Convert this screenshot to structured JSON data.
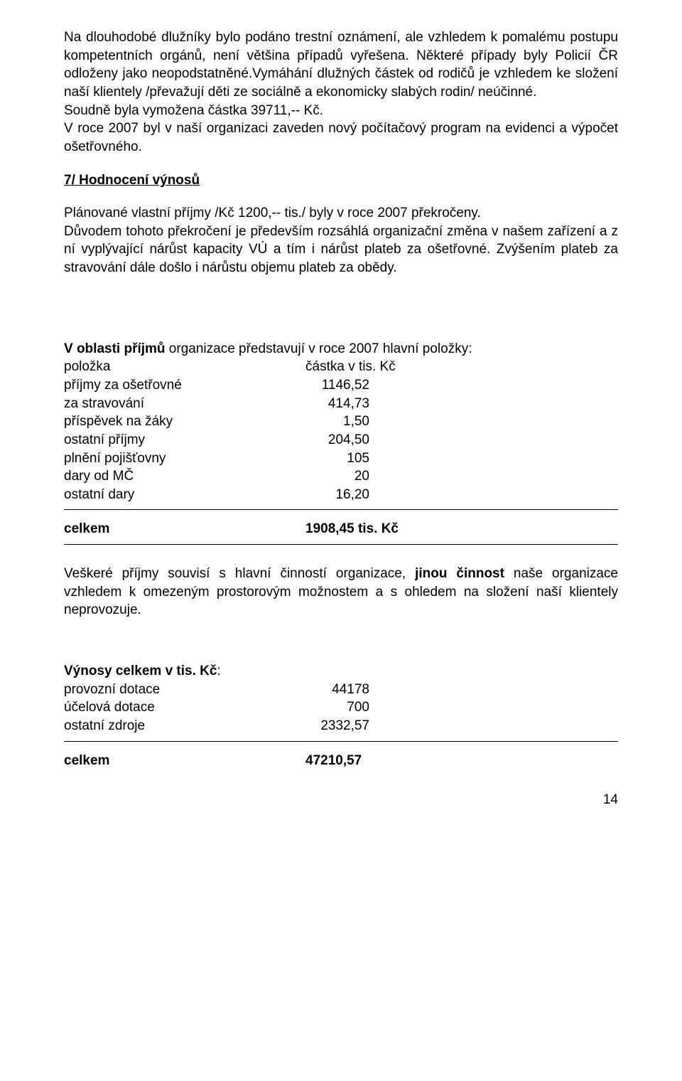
{
  "p1": "Na dlouhodobé dlužníky bylo podáno trestní oznámení, ale vzhledem k pomalému postupu kompetentních orgánů, není většina případů vyřešena. Některé případy byly Policií ČR odloženy jako neopodstatněné.Vymáhání dlužných částek od rodičů je vzhledem ke složení naší klientely /převažují děti ze sociálně a ekonomicky slabých rodin/ neúčinné.",
  "p1b": "Soudně byla vymožena částka 39711,-- Kč.",
  "p1c": "V roce 2007 byl v naší organizaci zaveden nový počítačový program na evidenci a výpočet ošetřovného.",
  "h7": "7/ Hodnocení výnosů",
  "p2": "Plánované vlastní příjmy /Kč 1200,-- tis./ byly v roce 2007 překročeny.",
  "p3": "Důvodem tohoto překročení je především rozsáhlá organizační změna v našem zařízení a z ní vyplývající nárůst kapacity VÚ a tím i nárůst plateb za ošetřovné. Zvýšením plateb za stravování dále došlo i nárůstu objemu plateb za obědy.",
  "income_intro_a": "V oblasti příjmů",
  "income_intro_b": " organizace představují v roce 2007 hlavní položky:",
  "col_item": "položka",
  "col_amount": "částka v tis. Kč",
  "rows": [
    {
      "label": "příjmy za ošetřovné",
      "value": "1146,52"
    },
    {
      "label": "za stravování",
      "value": "414,73"
    },
    {
      "label": "příspěvek na žáky",
      "value": "1,50"
    },
    {
      "label": "ostatní příjmy",
      "value": "204,50"
    },
    {
      "label": "plnění pojišťovny",
      "value": "105"
    },
    {
      "label": "dary od MČ",
      "value": "20"
    },
    {
      "label": "ostatní dary",
      "value": "16,20"
    }
  ],
  "total_label": "celkem",
  "total_value": "1908,45 tis. Kč",
  "p4a": "Veškeré příjmy souvisí s hlavní činností organizace, ",
  "p4b": "jinou činnost",
  "p4c": " naše organizace vzhledem k omezeným prostorovým možnostem a s ohledem na složení naší klientely neprovozuje.",
  "ytitle": "Výnosy celkem v tis. Kč",
  "yrows": [
    {
      "label": "provozní dotace",
      "value": "44178"
    },
    {
      "label": "účelová dotace",
      "value": "700"
    },
    {
      "label": "ostatní zdroje",
      "value": "2332,57"
    }
  ],
  "ytotal_label": "celkem",
  "ytotal_value": "47210,57",
  "pagenum": "14"
}
